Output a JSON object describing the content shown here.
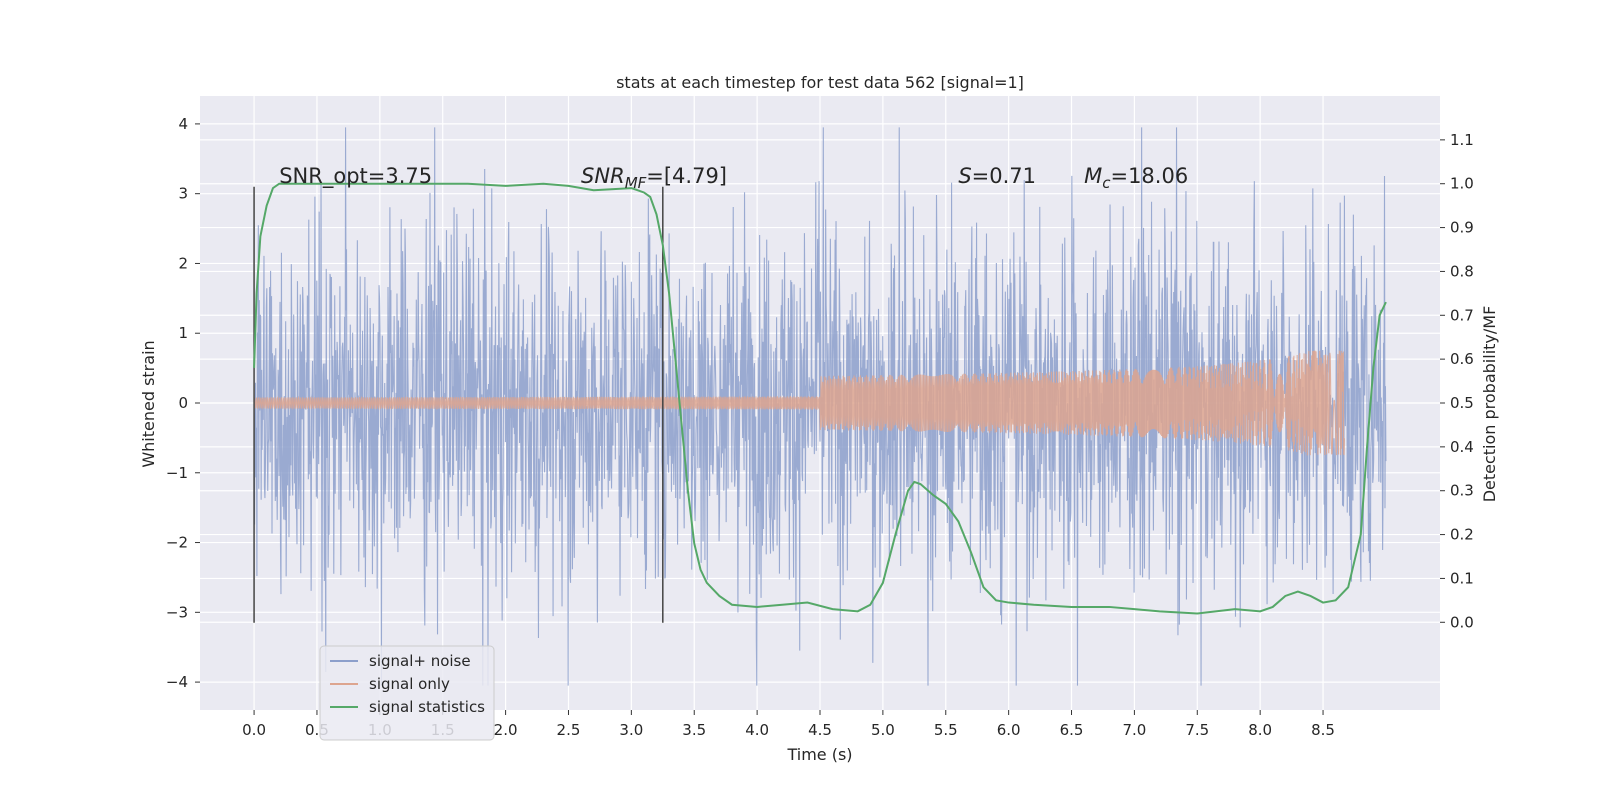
{
  "chart_data": {
    "type": "line",
    "title": "stats at each timestep for test data 562 [signal=1]",
    "xlabel": "Time (s)",
    "ylabel": "Whitened strain",
    "y2label": "Detection probability/MF",
    "xlim": [
      -0.43,
      9.43
    ],
    "ylim": [
      -4.4,
      4.4
    ],
    "y2lim": [
      -0.2,
      1.2
    ],
    "xticks": [
      0.0,
      0.5,
      1.0,
      1.5,
      2.0,
      2.5,
      3.0,
      3.5,
      4.0,
      4.5,
      5.0,
      5.5,
      6.0,
      6.5,
      7.0,
      7.5,
      8.0,
      8.5
    ],
    "xtick_labels": [
      "0.0",
      "0.5",
      "1.0",
      "1.5",
      "2.0",
      "2.5",
      "3.0",
      "3.5",
      "4.0",
      "4.5",
      "5.0",
      "5.5",
      "6.0",
      "6.5",
      "7.0",
      "7.5",
      "8.0",
      "8.5"
    ],
    "yticks": [
      4,
      3,
      2,
      1,
      0,
      -1,
      -2,
      -3,
      -4
    ],
    "ytick_labels": [
      "4",
      "3",
      "2",
      "1",
      "0",
      "−1",
      "−2",
      "−3",
      "−4"
    ],
    "y2ticks": [
      1.1,
      1.0,
      0.9,
      0.8,
      0.7,
      0.6,
      0.5,
      0.4,
      0.3,
      0.2,
      0.1,
      0.0
    ],
    "y2tick_labels": [
      "1.1",
      "1.0",
      "0.9",
      "0.8",
      "0.7",
      "0.6",
      "0.5",
      "0.4",
      "0.3",
      "0.2",
      "0.1",
      "0.0"
    ],
    "series": [
      {
        "name": "signal+ noise",
        "axis": "left",
        "color": "#8c9fcb",
        "duration": 9.0,
        "typical_amplitude": 1.25,
        "peak_max": 3.95,
        "peak_min": -4.05
      },
      {
        "name": "signal only",
        "axis": "left",
        "color": "#dda58f",
        "t_merger": 8.67,
        "peak_amplitude": 0.75
      },
      {
        "name": "signal statistics",
        "axis": "right",
        "color": "#55a868",
        "x": [
          0.0,
          0.02,
          0.05,
          0.1,
          0.15,
          0.2,
          0.3,
          0.5,
          1.0,
          1.5,
          1.7,
          2.0,
          2.3,
          2.5,
          2.7,
          3.0,
          3.1,
          3.15,
          3.2,
          3.25,
          3.3,
          3.35,
          3.4,
          3.45,
          3.5,
          3.55,
          3.6,
          3.7,
          3.8,
          4.0,
          4.2,
          4.4,
          4.6,
          4.8,
          4.9,
          5.0,
          5.1,
          5.2,
          5.25,
          5.3,
          5.4,
          5.5,
          5.6,
          5.7,
          5.8,
          5.9,
          6.0,
          6.2,
          6.5,
          6.8,
          7.0,
          7.2,
          7.5,
          7.8,
          8.0,
          8.1,
          8.2,
          8.3,
          8.4,
          8.5,
          8.6,
          8.7,
          8.8,
          8.85,
          8.9,
          8.95,
          9.0
        ],
        "y": [
          0.58,
          0.75,
          0.88,
          0.95,
          0.99,
          1.0,
          1.0,
          1.0,
          1.0,
          1.0,
          1.0,
          0.995,
          1.0,
          0.995,
          0.985,
          0.99,
          0.98,
          0.97,
          0.93,
          0.86,
          0.75,
          0.6,
          0.45,
          0.3,
          0.18,
          0.12,
          0.09,
          0.06,
          0.04,
          0.035,
          0.04,
          0.045,
          0.03,
          0.025,
          0.04,
          0.09,
          0.2,
          0.3,
          0.32,
          0.315,
          0.29,
          0.27,
          0.23,
          0.16,
          0.08,
          0.05,
          0.045,
          0.04,
          0.035,
          0.035,
          0.03,
          0.025,
          0.02,
          0.03,
          0.025,
          0.035,
          0.06,
          0.07,
          0.06,
          0.045,
          0.05,
          0.08,
          0.2,
          0.4,
          0.58,
          0.7,
          0.73
        ]
      }
    ],
    "vlines": [
      {
        "x": 0.0,
        "ymin": -3.15,
        "ymax": 3.1
      },
      {
        "x": 3.25,
        "ymin": -3.15,
        "ymax": 3.1
      }
    ],
    "annotations": [
      {
        "id": "snr_opt",
        "x": 0.2,
        "y": 3.15,
        "text": "SNR_opt=3.75"
      },
      {
        "id": "snr_mf",
        "x": 2.6,
        "y": 3.15,
        "prefix": "SNR",
        "subscript": "MF",
        "suffix": "=[4.79]"
      },
      {
        "id": "s_value",
        "x": 5.6,
        "y": 3.15,
        "italic": "S",
        "suffix": "=0.71"
      },
      {
        "id": "mc_value",
        "x": 6.6,
        "y": 3.15,
        "italic": "M",
        "subscript": "c",
        "suffix": "=18.06"
      }
    ],
    "legend": {
      "position": "lower-left",
      "entries": [
        "signal+ noise",
        "signal only",
        "signal statistics"
      ]
    },
    "grid": true
  }
}
